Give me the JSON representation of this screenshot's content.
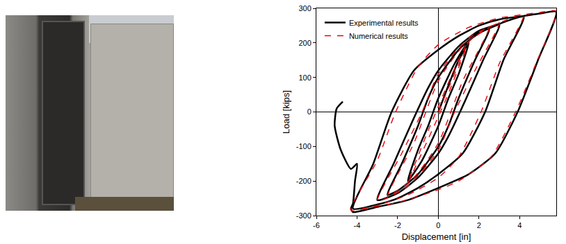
{
  "chart_data": {
    "type": "line",
    "x_label": "Displacement [in]",
    "y_label": "Load [kips]",
    "xlim": [
      -6,
      5.8
    ],
    "xticks": [
      -6,
      -4,
      -2,
      0,
      2,
      4
    ],
    "ylim": [
      -300,
      300
    ],
    "yticks": [
      -300,
      -200,
      -100,
      0,
      100,
      200,
      300
    ],
    "grid": false,
    "legend": "top left",
    "series": [
      {
        "name": "Experimental results",
        "color": "#000000",
        "line_style": "solid",
        "x": [
          0,
          1.0,
          1.5,
          1.0,
          0.5,
          0,
          -0.8,
          -1.5,
          -1.0,
          -0.5,
          0,
          0.8,
          1.5,
          2.0,
          2.5,
          1.8,
          1.0,
          0.5,
          0,
          -1.0,
          -2.0,
          -2.5,
          -1.8,
          -1.0,
          -0.5,
          0,
          1.0,
          2.0,
          2.5,
          3.0,
          2.2,
          1.3,
          0.5,
          0,
          -1.0,
          -2.0,
          -3.0,
          -2.2,
          -1.3,
          -0.5,
          0,
          1.0,
          2.0,
          3.0,
          3.6,
          4.2,
          3.2,
          2.3,
          1.2,
          0,
          -1.0,
          -2.0,
          -3.0,
          -4.2,
          -3.2,
          -2.3,
          -1.2,
          0,
          1.0,
          2.0,
          3.0,
          4.2,
          5.0,
          5.8,
          4.9,
          3.9,
          2.8,
          1.5,
          0,
          -1.5,
          -3.0,
          -4.2,
          -4.3,
          -4.2,
          -4.1,
          -4.0,
          -4.3,
          -4.8,
          -5.1,
          -5.0,
          -4.7
        ],
        "values": [
          0,
          150,
          200,
          110,
          40,
          -40,
          -140,
          -200,
          -110,
          -40,
          40,
          140,
          205,
          228,
          240,
          150,
          40,
          -40,
          -100,
          -180,
          -228,
          -240,
          -150,
          -40,
          40,
          100,
          180,
          230,
          242,
          252,
          150,
          30,
          -70,
          -120,
          -190,
          -235,
          -255,
          -150,
          -30,
          70,
          120,
          190,
          235,
          255,
          268,
          275,
          150,
          0,
          -120,
          -180,
          -220,
          -250,
          -268,
          -280,
          -150,
          0,
          120,
          180,
          220,
          250,
          268,
          278,
          285,
          290,
          150,
          0,
          -120,
          -180,
          -220,
          -255,
          -275,
          -290,
          -280,
          -265,
          -200,
          -150,
          -165,
          -110,
          -40,
          10,
          30
        ]
      },
      {
        "name": "Numerical results",
        "color": "#e8000b",
        "line_style": "dashed",
        "x": [
          0,
          1.5,
          0.4,
          -1.5,
          -0.4,
          1.5,
          2.5,
          1.2,
          0,
          -1.2,
          -2.5,
          -1.2,
          0,
          1.2,
          2.5,
          3.0,
          1.8,
          0.8,
          0,
          -1.5,
          -3.0,
          -1.8,
          -0.8,
          0,
          1.5,
          3.0,
          4.2,
          3.0,
          2.1,
          1.0,
          0,
          -1.5,
          -3.0,
          -4.3,
          -3.0,
          -2.1,
          -1.0,
          0,
          1.5,
          3.0,
          4.2,
          5.0,
          5.8,
          4.8,
          3.8,
          2.6,
          1.0,
          0,
          -2.0,
          -4.0
        ],
        "values": [
          0,
          205,
          40,
          -205,
          -40,
          205,
          245,
          90,
          -90,
          -190,
          -245,
          -90,
          90,
          190,
          245,
          258,
          120,
          0,
          -110,
          -215,
          -258,
          -120,
          0,
          110,
          215,
          258,
          282,
          140,
          0,
          -130,
          -190,
          -240,
          -270,
          -285,
          -140,
          0,
          130,
          195,
          245,
          272,
          282,
          288,
          292,
          140,
          0,
          -130,
          -200,
          -225,
          -262,
          -282
        ]
      }
    ]
  }
}
